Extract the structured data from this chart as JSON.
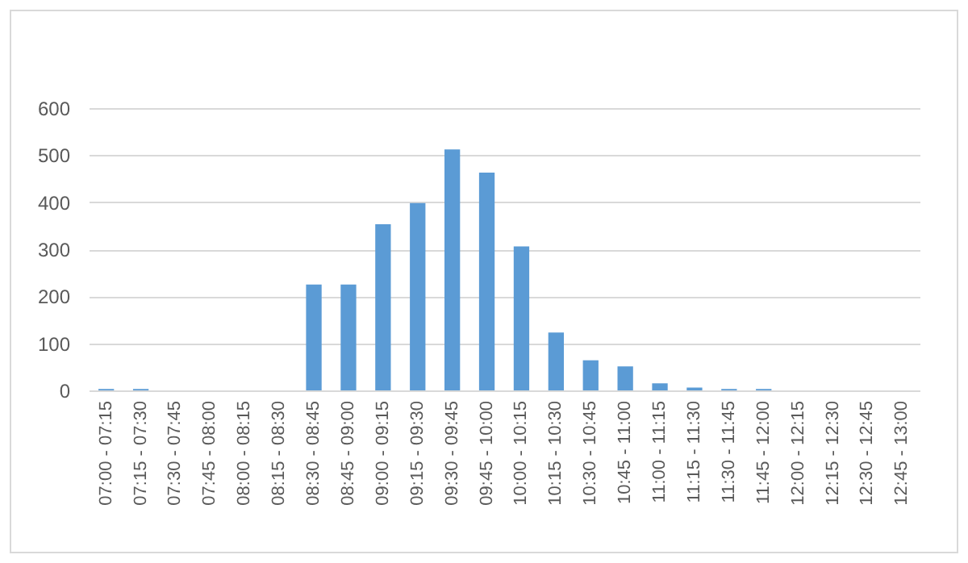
{
  "chart_data": {
    "type": "bar",
    "categories": [
      "07:00 - 07:15",
      "07:15 - 07:30",
      "07:30 - 07:45",
      "07:45 - 08:00",
      "08:00 - 08:15",
      "08:15 - 08:30",
      "08:30 - 08:45",
      "08:45 - 09:00",
      "09:00 - 09:15",
      "09:15 - 09:30",
      "09:30 - 09:45",
      "09:45 - 10:00",
      "10:00 - 10:15",
      "10:15 - 10:30",
      "10:30 - 10:45",
      "10:45 - 11:00",
      "11:00 - 11:15",
      "11:15 - 11:30",
      "11:30 - 11:45",
      "11:45 - 12:00",
      "12:00 - 12:15",
      "12:15 - 12:30",
      "12:30 - 12:45",
      "12:45 - 13:00"
    ],
    "values": [
      3,
      3,
      0,
      0,
      0,
      0,
      225,
      225,
      353,
      398,
      512,
      463,
      306,
      123,
      64,
      51,
      15,
      6,
      3,
      3,
      0,
      0,
      0,
      0
    ],
    "color": "#5b9bd5",
    "ylim": [
      0,
      600
    ],
    "yticks": [
      0,
      100,
      200,
      300,
      400,
      500,
      600
    ],
    "grid": "y"
  }
}
